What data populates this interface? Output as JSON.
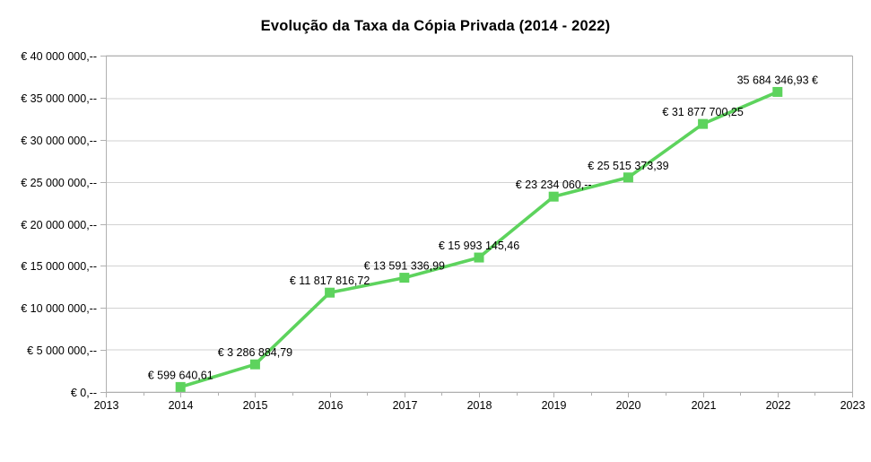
{
  "chart_data": {
    "type": "line",
    "title": "Evolução da Taxa da Cópia Privada (2014 - 2022)",
    "legend": "none",
    "grid": "horizontal",
    "marker": "square",
    "colors": {
      "line": "#5dd35d",
      "marker": "#5dd35d",
      "gridline": "#d2d2d2",
      "axis_border": "#b0b0b0",
      "text": "#000000",
      "background": "#ffffff"
    },
    "x": [
      2014,
      2015,
      2016,
      2017,
      2018,
      2019,
      2020,
      2021,
      2022
    ],
    "values": [
      599640.61,
      3286884.79,
      11817816.72,
      13591336.99,
      15993145.46,
      23234060.0,
      25515373.39,
      31877700.25,
      35684346.93
    ],
    "point_labels": [
      "€ 599 640,61",
      "€ 3 286 884,79",
      "€ 11 817 816,72",
      "€ 13 591 336,99",
      "€ 15 993 145,46",
      "€ 23 234 060,--",
      "€ 25 515 373,39",
      "€ 31 877 700,25",
      "35 684 346,93 €"
    ],
    "x_axis": {
      "min": 2013,
      "max": 2023,
      "tick_values": [
        2013,
        2014,
        2015,
        2016,
        2017,
        2018,
        2019,
        2020,
        2021,
        2022,
        2023
      ],
      "tick_labels": [
        "2013",
        "2014",
        "2015",
        "2016",
        "2017",
        "2018",
        "2019",
        "2020",
        "2021",
        "2022",
        "2023"
      ],
      "minor_tick_values": [
        2013.5,
        2014.5,
        2015.5,
        2016.5,
        2017.5,
        2018.5,
        2019.5,
        2020.5,
        2021.5,
        2022.5
      ]
    },
    "y_axis": {
      "min": 0,
      "max": 40000000,
      "step": 5000000,
      "tick_values": [
        0,
        5000000,
        10000000,
        15000000,
        20000000,
        25000000,
        30000000,
        35000000,
        40000000
      ],
      "tick_labels": [
        "€ 0,--",
        "€ 5 000 000,--",
        "€ 10 000 000,--",
        "€ 15 000 000,--",
        "€ 20 000 000,--",
        "€ 25 000 000,--",
        "€ 30 000 000,--",
        "€ 35 000 000,--",
        "€ 40 000 000,--"
      ]
    }
  }
}
